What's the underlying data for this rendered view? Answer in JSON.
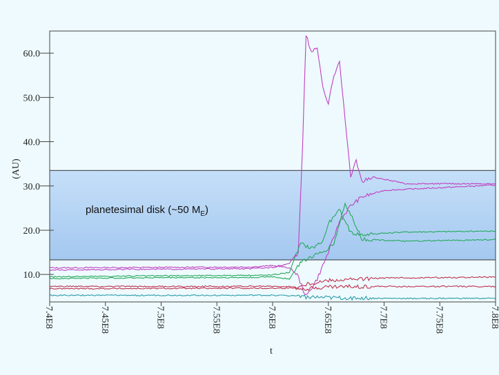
{
  "chart_data": {
    "type": "line",
    "xlabel": "t",
    "ylabel": "(AU)",
    "xlim": [
      740000000,
      780000000
    ],
    "ylim": [
      3.8,
      65
    ],
    "x_ticks": [
      740000000,
      745000000,
      750000000,
      755000000,
      760000000,
      765000000,
      770000000,
      775000000,
      780000000
    ],
    "x_tick_labels": [
      "7.4E8",
      "7.45E8",
      "7.5E8",
      "7.55E8",
      "7.6E8",
      "7.65E8",
      "7.7E8",
      "7.75E8",
      "7.8E8"
    ],
    "y_ticks": [
      10,
      20,
      30,
      40,
      50,
      60
    ],
    "y_tick_labels": [
      "10.0",
      "20.0",
      "30.0",
      "40.0",
      "50.0",
      "60.0"
    ],
    "grid": false,
    "annotation": {
      "text_main": "planetesimal disk (~50 M",
      "text_sub": "E",
      "text_end": ")",
      "y_range": [
        13.3,
        33.5
      ],
      "fill_color": "#a9cdf3"
    },
    "colors": {
      "magenta": "#c03ec0",
      "green": "#23a85a",
      "teal": "#2a9aa6",
      "red": "#c0304e"
    },
    "series": [
      {
        "color": "#c03ec0",
        "points": [
          [
            740000000,
            11.5
          ],
          [
            750000000,
            11.6
          ],
          [
            758000000,
            11.7
          ],
          [
            760000000,
            12.0
          ],
          [
            761500000,
            11.5
          ],
          [
            762200000,
            10.0
          ],
          [
            763000000,
            5.0
          ],
          [
            764000000,
            9.0
          ],
          [
            765000000,
            15.0
          ],
          [
            766000000,
            22.0
          ],
          [
            767000000,
            25.5
          ],
          [
            768000000,
            27.5
          ],
          [
            770000000,
            29.0
          ],
          [
            775000000,
            29.6
          ],
          [
            780000000,
            30.2
          ]
        ]
      },
      {
        "color": "#c03ec0",
        "points": [
          [
            740000000,
            11.0
          ],
          [
            750000000,
            11.2
          ],
          [
            758000000,
            11.3
          ],
          [
            760000000,
            11.6
          ],
          [
            761500000,
            12.5
          ],
          [
            762300000,
            15.0
          ],
          [
            762700000,
            40.0
          ],
          [
            763000000,
            64.0
          ],
          [
            763500000,
            60.0
          ],
          [
            764000000,
            61.5
          ],
          [
            764500000,
            52.0
          ],
          [
            765000000,
            48.5
          ],
          [
            765500000,
            55.0
          ],
          [
            766000000,
            58.5
          ],
          [
            766500000,
            45.0
          ],
          [
            767000000,
            32.0
          ],
          [
            767500000,
            36.0
          ],
          [
            768000000,
            31.0
          ],
          [
            769000000,
            32.0
          ],
          [
            772000000,
            30.5
          ],
          [
            780000000,
            30.5
          ]
        ]
      },
      {
        "color": "#23a85a",
        "points": [
          [
            740000000,
            9.5
          ],
          [
            750000000,
            9.7
          ],
          [
            758000000,
            9.8
          ],
          [
            760000000,
            9.9
          ],
          [
            761500000,
            10.5
          ],
          [
            762500000,
            17.0
          ],
          [
            763500000,
            16.0
          ],
          [
            764500000,
            17.5
          ],
          [
            765000000,
            21.5
          ],
          [
            766000000,
            24.5
          ],
          [
            767000000,
            19.5
          ],
          [
            768000000,
            19.0
          ],
          [
            772000000,
            19.6
          ],
          [
            780000000,
            19.8
          ]
        ]
      },
      {
        "color": "#23a85a",
        "points": [
          [
            740000000,
            9.1
          ],
          [
            750000000,
            9.3
          ],
          [
            758000000,
            9.3
          ],
          [
            760000000,
            9.5
          ],
          [
            761500000,
            9.0
          ],
          [
            762600000,
            13.0
          ],
          [
            763500000,
            14.0
          ],
          [
            764500000,
            15.0
          ],
          [
            765500000,
            17.0
          ],
          [
            766500000,
            26.0
          ],
          [
            767500000,
            21.0
          ],
          [
            768000000,
            18.0
          ],
          [
            772000000,
            17.5
          ],
          [
            780000000,
            17.9
          ]
        ]
      },
      {
        "color": "#2a9aa6",
        "points": [
          [
            740000000,
            5.3
          ],
          [
            750000000,
            5.3
          ],
          [
            760000000,
            5.3
          ],
          [
            762500000,
            5.2
          ],
          [
            763000000,
            4.9
          ],
          [
            765000000,
            4.7
          ],
          [
            770000000,
            4.6
          ],
          [
            780000000,
            4.6
          ]
        ]
      },
      {
        "color": "#c0304e",
        "points": [
          [
            740000000,
            7.3
          ],
          [
            750000000,
            7.3
          ],
          [
            760000000,
            7.35
          ],
          [
            762000000,
            7.2
          ],
          [
            763000000,
            6.8
          ],
          [
            765000000,
            7.2
          ],
          [
            770000000,
            7.3
          ],
          [
            780000000,
            7.3
          ]
        ]
      },
      {
        "color": "#c0304e",
        "points": [
          [
            740000000,
            6.8
          ],
          [
            750000000,
            6.85
          ],
          [
            760000000,
            6.9
          ],
          [
            762000000,
            6.95
          ],
          [
            763000000,
            7.8
          ],
          [
            765000000,
            8.7
          ],
          [
            770000000,
            9.2
          ],
          [
            780000000,
            9.4
          ]
        ]
      }
    ]
  }
}
